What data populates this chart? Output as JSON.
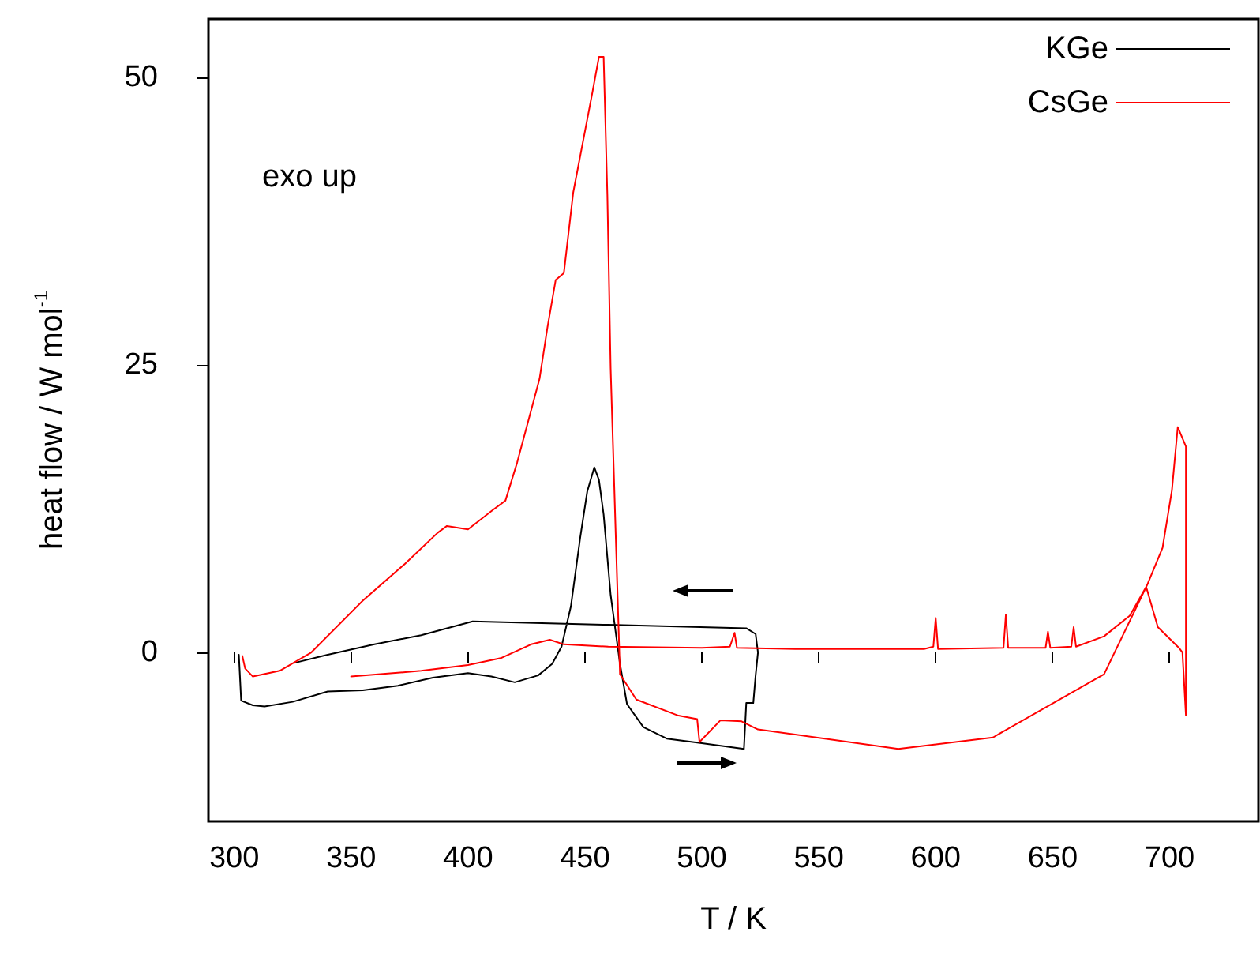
{
  "chart_data": {
    "type": "line",
    "xlabel": "T / K",
    "ylabel": "heat flow / W mol$^{-1}$",
    "annotations": [
      "exo up"
    ],
    "xlim": [
      289,
      738
    ],
    "ylim": [
      -14.7,
      55.1
    ],
    "xticks": [
      300,
      350,
      400,
      450,
      500,
      550,
      600,
      650,
      700
    ],
    "yticks": [
      0,
      25,
      50
    ],
    "grid": false,
    "legend": "top right",
    "marker": "none",
    "line_style": "solid",
    "series": [
      {
        "name": "KGe",
        "color": "#000000",
        "x": [
          302,
          303,
          308,
          313,
          325,
          340,
          355,
          370,
          385,
          400,
          410,
          420,
          430,
          436,
          440,
          444,
          448,
          451,
          454,
          456,
          458,
          461,
          465,
          468,
          475,
          485,
          500,
          518,
          519,
          522,
          523,
          524,
          523,
          519,
          460,
          402,
          380,
          360,
          340,
          326
        ],
        "values": [
          -0.2,
          -4.2,
          -4.6,
          -4.7,
          -4.3,
          -3.4,
          -3.3,
          -2.9,
          -2.2,
          -1.8,
          -2.1,
          -2.6,
          -2.0,
          -1.0,
          0.5,
          4,
          10,
          14,
          16.1,
          15,
          12,
          5,
          -1,
          -4.5,
          -6.5,
          -7.5,
          -7.9,
          -8.4,
          -4.4,
          -4.4,
          -2,
          0,
          1.6,
          2.1,
          2.4,
          2.7,
          1.5,
          0.7,
          -0.2,
          -0.9
        ]
      },
      {
        "name": "CsGe",
        "color": "#ff0000",
        "x": [
          350,
          380,
          400,
          414,
          427,
          435,
          441,
          460,
          500,
          512,
          514,
          515,
          540,
          595,
          599,
          600,
          601,
          629,
          630,
          631,
          647,
          648,
          649,
          658,
          659,
          660,
          672,
          683,
          690,
          695,
          704,
          705.5,
          707,
          707,
          707,
          703.5,
          701,
          697,
          690.5,
          672,
          627,
          624.5,
          584,
          524,
          517,
          508,
          499,
          498,
          490,
          472,
          465,
          461,
          459.6,
          458,
          456,
          453,
          445,
          441,
          437.5,
          434,
          430.6,
          421,
          416,
          410.7,
          400,
          391,
          387,
          373,
          355,
          333,
          319.5,
          308,
          304.7,
          303.5
        ],
        "values": [
          -2.1,
          -1.6,
          -1.1,
          -0.5,
          0.7,
          1.1,
          0.7,
          0.5,
          0.4,
          0.5,
          1.7,
          0.4,
          0.3,
          0.3,
          0.5,
          3,
          0.3,
          0.4,
          3.3,
          0.4,
          0.4,
          1.8,
          0.4,
          0.5,
          2.2,
          0.5,
          1.4,
          3.2,
          5.7,
          2.2,
          0.4,
          0,
          -5.5,
          8,
          17.9,
          19.6,
          14.1,
          9.1,
          5.9,
          -1.9,
          -7.1,
          -7.4,
          -8.4,
          -6.7,
          -6.0,
          -5.9,
          -7.8,
          -5.8,
          -5.5,
          -4.1,
          -1.9,
          24.7,
          39.8,
          51.8,
          51.8,
          48.5,
          40,
          33,
          32.4,
          28.3,
          23.8,
          16.5,
          13.2,
          12.4,
          10.7,
          11,
          10.4,
          7.7,
          4.5,
          0,
          -1.6,
          -2.1,
          -1.4,
          -0.3
        ]
      }
    ]
  }
}
